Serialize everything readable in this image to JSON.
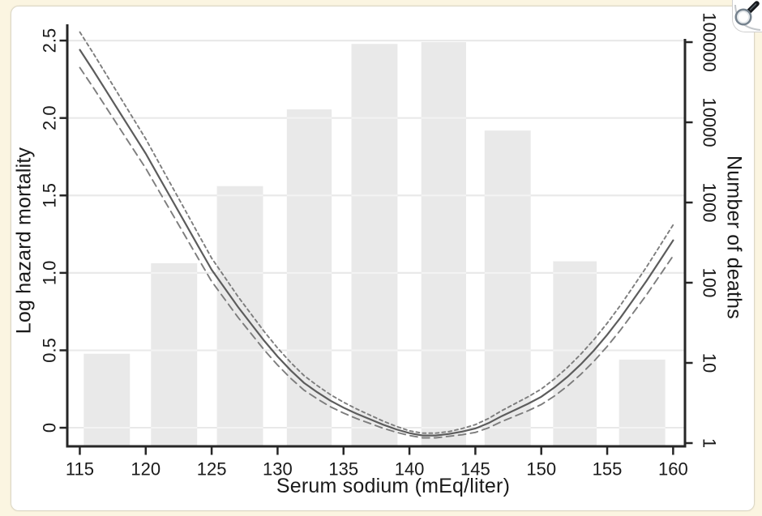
{
  "page": {
    "corner_tool": "magnifier"
  },
  "chart_data": {
    "type": "bar+line",
    "title": "",
    "xlabel": "Serum sodium (mEq/liter)",
    "ylabel_left": "Log hazard mortality",
    "ylabel_right": "Number of deaths",
    "x_ticks": [
      115,
      120,
      125,
      130,
      135,
      140,
      145,
      150,
      155,
      160
    ],
    "x_tick_labels": [
      "115",
      "120",
      "125",
      "130",
      "135",
      "140",
      "145",
      "150",
      "155",
      "160"
    ],
    "left_ticks": [
      0,
      0.5,
      1.0,
      1.5,
      2.0,
      2.5
    ],
    "left_tick_labels": [
      "0",
      "0.5",
      "1.0",
      "1.5",
      "2.0",
      "2.5"
    ],
    "right_ticks": [
      1,
      10,
      100,
      1000,
      10000,
      100000
    ],
    "right_tick_labels": [
      "1",
      "10",
      "100",
      "1000",
      "10000",
      "100000"
    ],
    "xlim": [
      114.05,
      160.9
    ],
    "left_ylim": [
      -0.12,
      2.605
    ],
    "right_scale": "log",
    "grid": "horizontal-left-ticks",
    "legend": "none",
    "bars": {
      "axis": "right",
      "name": "number-of-deaths-histogram",
      "bins": [
        [
          115.3,
          118.8
        ],
        [
          120.4,
          123.9
        ],
        [
          125.4,
          128.9
        ],
        [
          130.7,
          134.1
        ],
        [
          135.6,
          139.1
        ],
        [
          140.9,
          144.3
        ],
        [
          145.7,
          149.2
        ],
        [
          150.9,
          154.2
        ],
        [
          155.9,
          159.4
        ]
      ],
      "deaths": [
        13,
        175,
        1600,
        14500,
        95000,
        100000,
        7900,
        185,
        11
      ]
    },
    "lines": {
      "axis": "left",
      "x": [
        115,
        116,
        117,
        118,
        119,
        120,
        121,
        122,
        123,
        124,
        125,
        126,
        127,
        128,
        129,
        130,
        131,
        132,
        133,
        134,
        135,
        136,
        137,
        138,
        139,
        140,
        141,
        142,
        143,
        144,
        145,
        146,
        147,
        148,
        149,
        150,
        151,
        152,
        153,
        154,
        155,
        156,
        157,
        158,
        159,
        160
      ],
      "series": [
        {
          "name": "log-hazard-estimate",
          "style": "solid",
          "values": [
            2.44,
            2.31,
            2.175,
            2.04,
            1.905,
            1.77,
            1.62,
            1.47,
            1.32,
            1.17,
            1.02,
            0.9,
            0.78,
            0.67,
            0.56,
            0.46,
            0.37,
            0.29,
            0.23,
            0.175,
            0.13,
            0.09,
            0.055,
            0.02,
            -0.01,
            -0.035,
            -0.05,
            -0.05,
            -0.04,
            -0.025,
            -0.005,
            0.03,
            0.075,
            0.115,
            0.155,
            0.2,
            0.26,
            0.33,
            0.41,
            0.5,
            0.6,
            0.71,
            0.83,
            0.95,
            1.08,
            1.21
          ]
        },
        {
          "name": "upper-confidence-limit",
          "style": "short-dash",
          "values": [
            2.555,
            2.421,
            2.282,
            2.143,
            2.004,
            1.865,
            1.711,
            1.557,
            1.403,
            1.249,
            1.095,
            0.971,
            0.847,
            0.733,
            0.619,
            0.515,
            0.421,
            0.337,
            0.273,
            0.214,
            0.165,
            0.121,
            0.082,
            0.043,
            0.009,
            -0.02,
            -0.035,
            -0.035,
            -0.025,
            -0.005,
            0.02,
            0.06,
            0.11,
            0.155,
            0.2,
            0.25,
            0.315,
            0.39,
            0.475,
            0.57,
            0.675,
            0.79,
            0.915,
            1.04,
            1.175,
            1.31
          ]
        },
        {
          "name": "lower-confidence-limit",
          "style": "long-dash",
          "values": [
            2.325,
            2.199,
            2.068,
            1.937,
            1.806,
            1.675,
            1.529,
            1.383,
            1.237,
            1.091,
            0.945,
            0.829,
            0.713,
            0.607,
            0.501,
            0.405,
            0.319,
            0.243,
            0.187,
            0.136,
            0.095,
            0.059,
            0.028,
            -0.003,
            -0.029,
            -0.05,
            -0.065,
            -0.065,
            -0.055,
            -0.045,
            -0.03,
            0.0,
            0.04,
            0.075,
            0.11,
            0.15,
            0.205,
            0.27,
            0.345,
            0.43,
            0.525,
            0.63,
            0.745,
            0.86,
            0.985,
            1.11
          ]
        }
      ]
    },
    "colors": {
      "bar": "#e9e9e9",
      "grid": "#d8d8d8",
      "grid_over_bar": "rgba(255,255,255,0.45)",
      "axis": "#262626",
      "text": "#1a1a1a",
      "line": "#5c5c5c",
      "ci": "#7d7d7d",
      "page_bg": "#fbf5e1",
      "card_bg": "#ffffff",
      "card_border": "#dcd7c5"
    }
  }
}
